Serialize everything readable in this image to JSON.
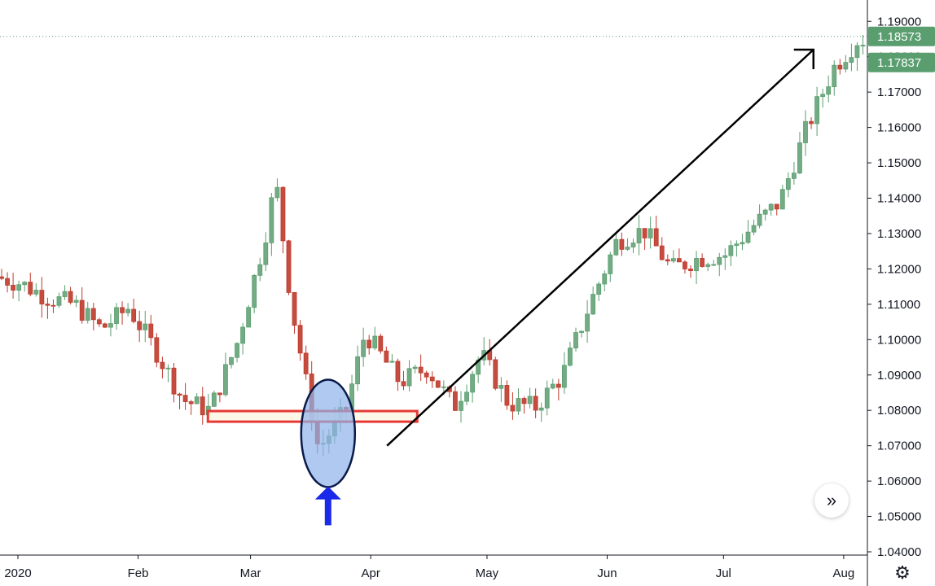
{
  "chart_data": {
    "type": "candlestick",
    "instrument_hint": "EUR/USD daily",
    "x_ticks": [
      {
        "date": "2020-01-01",
        "label": "2020"
      },
      {
        "date": "2020-02-01",
        "label": "Feb"
      },
      {
        "date": "2020-03-01",
        "label": "Mar"
      },
      {
        "date": "2020-04-01",
        "label": "Apr"
      },
      {
        "date": "2020-05-01",
        "label": "May"
      },
      {
        "date": "2020-06-01",
        "label": "Jun"
      },
      {
        "date": "2020-07-01",
        "label": "Jul"
      },
      {
        "date": "2020-08-01",
        "label": "Aug"
      }
    ],
    "y_ticks": [
      "1.04000",
      "1.05000",
      "1.06000",
      "1.07000",
      "1.08000",
      "1.09000",
      "1.10000",
      "1.11000",
      "1.12000",
      "1.13000",
      "1.14000",
      "1.15000",
      "1.16000",
      "1.17000",
      "1.18000",
      "1.19000"
    ],
    "ylim": [
      1.04,
      1.1935
    ],
    "price_tags": [
      {
        "value": 1.18573,
        "label": "1.18573",
        "color": "#5a9e6f"
      },
      {
        "value": 1.17837,
        "label": "1.17837",
        "color": "#5a9e6f"
      }
    ],
    "colors": {
      "up": "#5a9e6f",
      "down": "#c0392b",
      "up_fill": "#73ab84",
      "down_fill": "#c44d40"
    },
    "candles_weekly_close": [
      {
        "date": "2019-12-27",
        "close": 1.118
      },
      {
        "date": "2020-01-03",
        "close": 1.116
      },
      {
        "date": "2020-01-10",
        "close": 1.112
      },
      {
        "date": "2020-01-17",
        "close": 1.11
      },
      {
        "date": "2020-01-24",
        "close": 1.103
      },
      {
        "date": "2020-01-31",
        "close": 1.109
      },
      {
        "date": "2020-02-07",
        "close": 1.097
      },
      {
        "date": "2020-02-14",
        "close": 1.083
      },
      {
        "date": "2020-02-21",
        "close": 1.08
      },
      {
        "date": "2020-02-28",
        "close": 1.099
      },
      {
        "date": "2020-03-06",
        "close": 1.128
      },
      {
        "date": "2020-03-09",
        "close": 1.145
      },
      {
        "date": "2020-03-13",
        "close": 1.11
      },
      {
        "date": "2020-03-20",
        "close": 1.069
      },
      {
        "date": "2020-03-27",
        "close": 1.08
      },
      {
        "date": "2020-04-01",
        "close": 1.102
      },
      {
        "date": "2020-04-10",
        "close": 1.088
      },
      {
        "date": "2020-04-17",
        "close": 1.092
      },
      {
        "date": "2020-04-24",
        "close": 1.081
      },
      {
        "date": "2020-05-01",
        "close": 1.096
      },
      {
        "date": "2020-05-08",
        "close": 1.082
      },
      {
        "date": "2020-05-15",
        "close": 1.081
      },
      {
        "date": "2020-05-22",
        "close": 1.09
      },
      {
        "date": "2020-05-29",
        "close": 1.11
      },
      {
        "date": "2020-06-05",
        "close": 1.128
      },
      {
        "date": "2020-06-12",
        "close": 1.131
      },
      {
        "date": "2020-06-19",
        "close": 1.12
      },
      {
        "date": "2020-06-26",
        "close": 1.123
      },
      {
        "date": "2020-07-03",
        "close": 1.124
      },
      {
        "date": "2020-07-10",
        "close": 1.132
      },
      {
        "date": "2020-07-17",
        "close": 1.139
      },
      {
        "date": "2020-07-24",
        "close": 1.16
      },
      {
        "date": "2020-07-31",
        "close": 1.177
      },
      {
        "date": "2020-08-07",
        "close": 1.186
      },
      {
        "date": "2020-08-10",
        "close": 1.178
      }
    ],
    "annotations": [
      {
        "type": "rectangle",
        "role": "support-zone",
        "color": "#e53935",
        "fill": "#fdf6e3",
        "date_from": "2020-02-19",
        "date_to": "2020-04-13",
        "y_from": 1.0768,
        "y_to": 1.0798
      },
      {
        "type": "ellipse",
        "role": "highlight",
        "color": "#0a1a4a",
        "fill": "#8fb2ea",
        "center_date": "2020-03-21",
        "center_y": 1.0735
      },
      {
        "type": "arrow",
        "role": "up-arrow",
        "color": "#1a2ae8",
        "date": "2020-03-21",
        "from_y": 1.0475,
        "to_y": 1.0585
      },
      {
        "type": "arrow",
        "role": "trend-arrow",
        "color": "#000000",
        "from_date": "2020-04-01",
        "from_y": 1.07,
        "to_date": "2020-07-20",
        "to_y": 1.182
      }
    ]
  },
  "ui": {
    "scroll_icon": "»",
    "settings_icon": "⚙"
  }
}
